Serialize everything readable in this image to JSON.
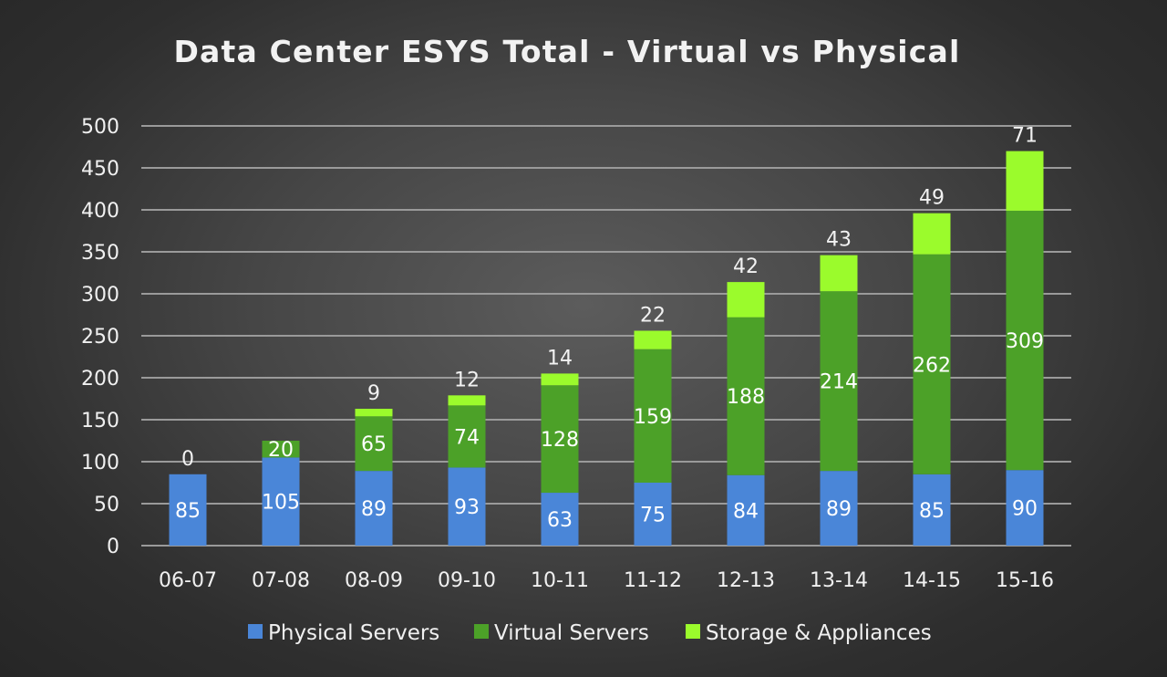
{
  "chart_data": {
    "type": "bar",
    "stacked": true,
    "title": "Data Center ESYS Total - Virtual vs Physical",
    "xlabel": "",
    "ylabel": "",
    "ylim": [
      0,
      500
    ],
    "yticks": [
      0,
      50,
      100,
      150,
      200,
      250,
      300,
      350,
      400,
      450,
      500
    ],
    "grid": true,
    "legend_position": "bottom",
    "categories": [
      "06-07",
      "07-08",
      "08-09",
      "09-10",
      "10-11",
      "11-12",
      "12-13",
      "13-14",
      "14-15",
      "15-16"
    ],
    "series": [
      {
        "name": "Physical Servers",
        "color": "#4a86d8",
        "values": [
          85,
          105,
          89,
          93,
          63,
          75,
          84,
          89,
          85,
          90
        ]
      },
      {
        "name": "Virtual Servers",
        "color": "#4ca128",
        "values": [
          null,
          20,
          65,
          74,
          128,
          159,
          188,
          214,
          262,
          309
        ]
      },
      {
        "name": "Storage & Appliances",
        "color": "#9bfb2c",
        "values": [
          0,
          null,
          9,
          12,
          14,
          22,
          42,
          43,
          49,
          71
        ]
      }
    ]
  }
}
